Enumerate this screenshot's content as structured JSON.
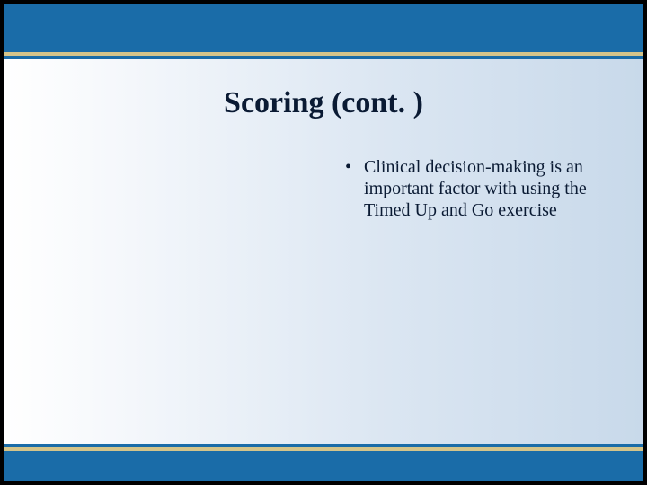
{
  "slide": {
    "title": "Scoring (cont. )",
    "bullets": [
      {
        "text": "Clinical decision-making is an important factor with using the Timed Up and Go exercise"
      }
    ]
  },
  "style": {
    "band_color": "#1a6ca8",
    "accent_color": "#d4c48a",
    "bg_gradient_start": "#ffffff",
    "bg_gradient_end": "#c8d9ea",
    "title_color": "#0a1a33",
    "text_color": "#0a1a33",
    "title_fontsize": 34,
    "body_fontsize": 20,
    "bullet_glyph": "•"
  }
}
